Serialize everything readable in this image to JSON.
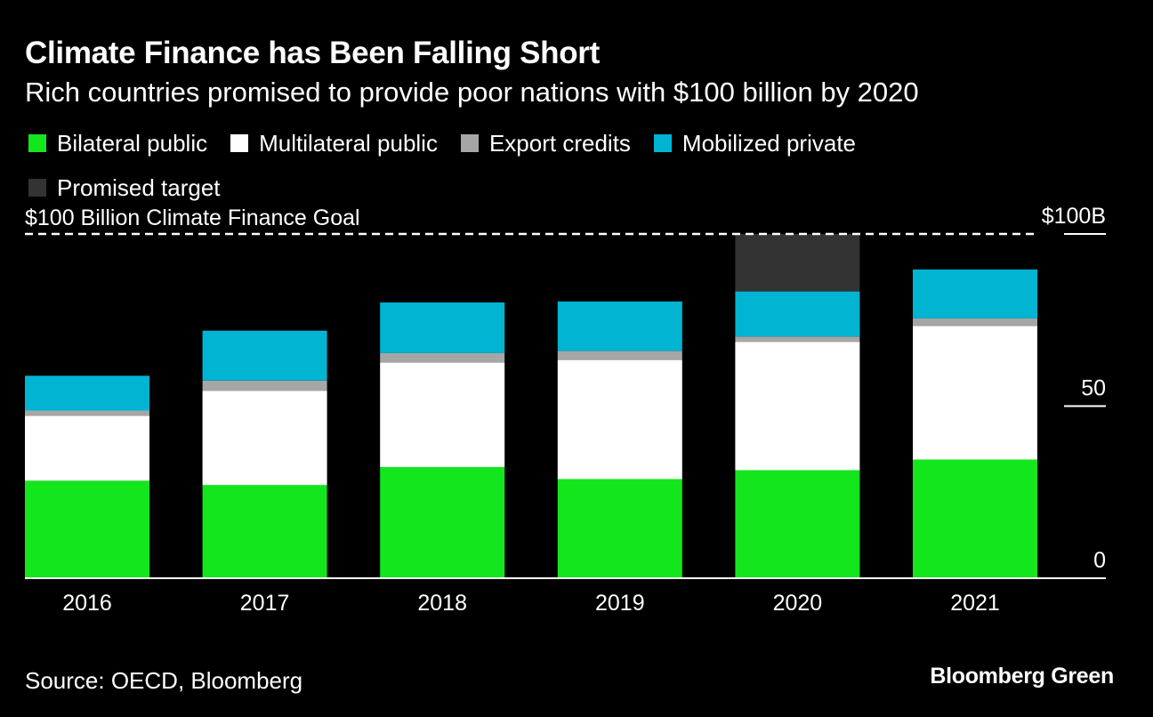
{
  "header": {
    "title": "Climate Finance has Been Falling Short",
    "subtitle": "Rich countries promised to provide poor nations with $100 billion by 2020"
  },
  "footer": {
    "source": "Source: OECD, Bloomberg",
    "brand": "Bloomberg Green"
  },
  "chart_data": {
    "type": "bar",
    "stacked": true,
    "title": "Climate Finance has Been Falling Short",
    "subtitle": "Rich countries promised to provide poor nations with $100 billion by 2020",
    "categories": [
      "2016",
      "2017",
      "2018",
      "2019",
      "2020",
      "2021"
    ],
    "series": [
      {
        "name": "Bilateral public",
        "color": "#14e61e",
        "values": [
          28.3,
          27.1,
          32.3,
          28.8,
          31.4,
          34.5
        ]
      },
      {
        "name": "Multilateral public",
        "color": "#ffffff",
        "values": [
          18.9,
          27.3,
          30.4,
          34.6,
          37.2,
          38.8
        ]
      },
      {
        "name": "Export credits",
        "color": "#a6a6a6",
        "values": [
          1.5,
          3.0,
          2.7,
          2.6,
          1.6,
          2.2
        ]
      },
      {
        "name": "Mobilized private",
        "color": "#00b4d2",
        "values": [
          10.1,
          14.5,
          14.7,
          14.4,
          13.1,
          14.2
        ]
      },
      {
        "name": "Promised target",
        "color": "#333333",
        "values": [
          0,
          0,
          0,
          0,
          16.7,
          0
        ]
      }
    ],
    "ylim": [
      0,
      100
    ],
    "yticks": [
      {
        "value": 100,
        "label": "$100B"
      },
      {
        "value": 50,
        "label": "50"
      },
      {
        "value": 0,
        "label": "0"
      }
    ],
    "reference_line": {
      "value": 100,
      "label": "$100 Billion Climate Finance Goal",
      "style": "dashed",
      "color": "#ffffff"
    },
    "legend_position": "top-left",
    "y_axis_position": "right",
    "grid": false,
    "xlabel": "",
    "ylabel": ""
  }
}
